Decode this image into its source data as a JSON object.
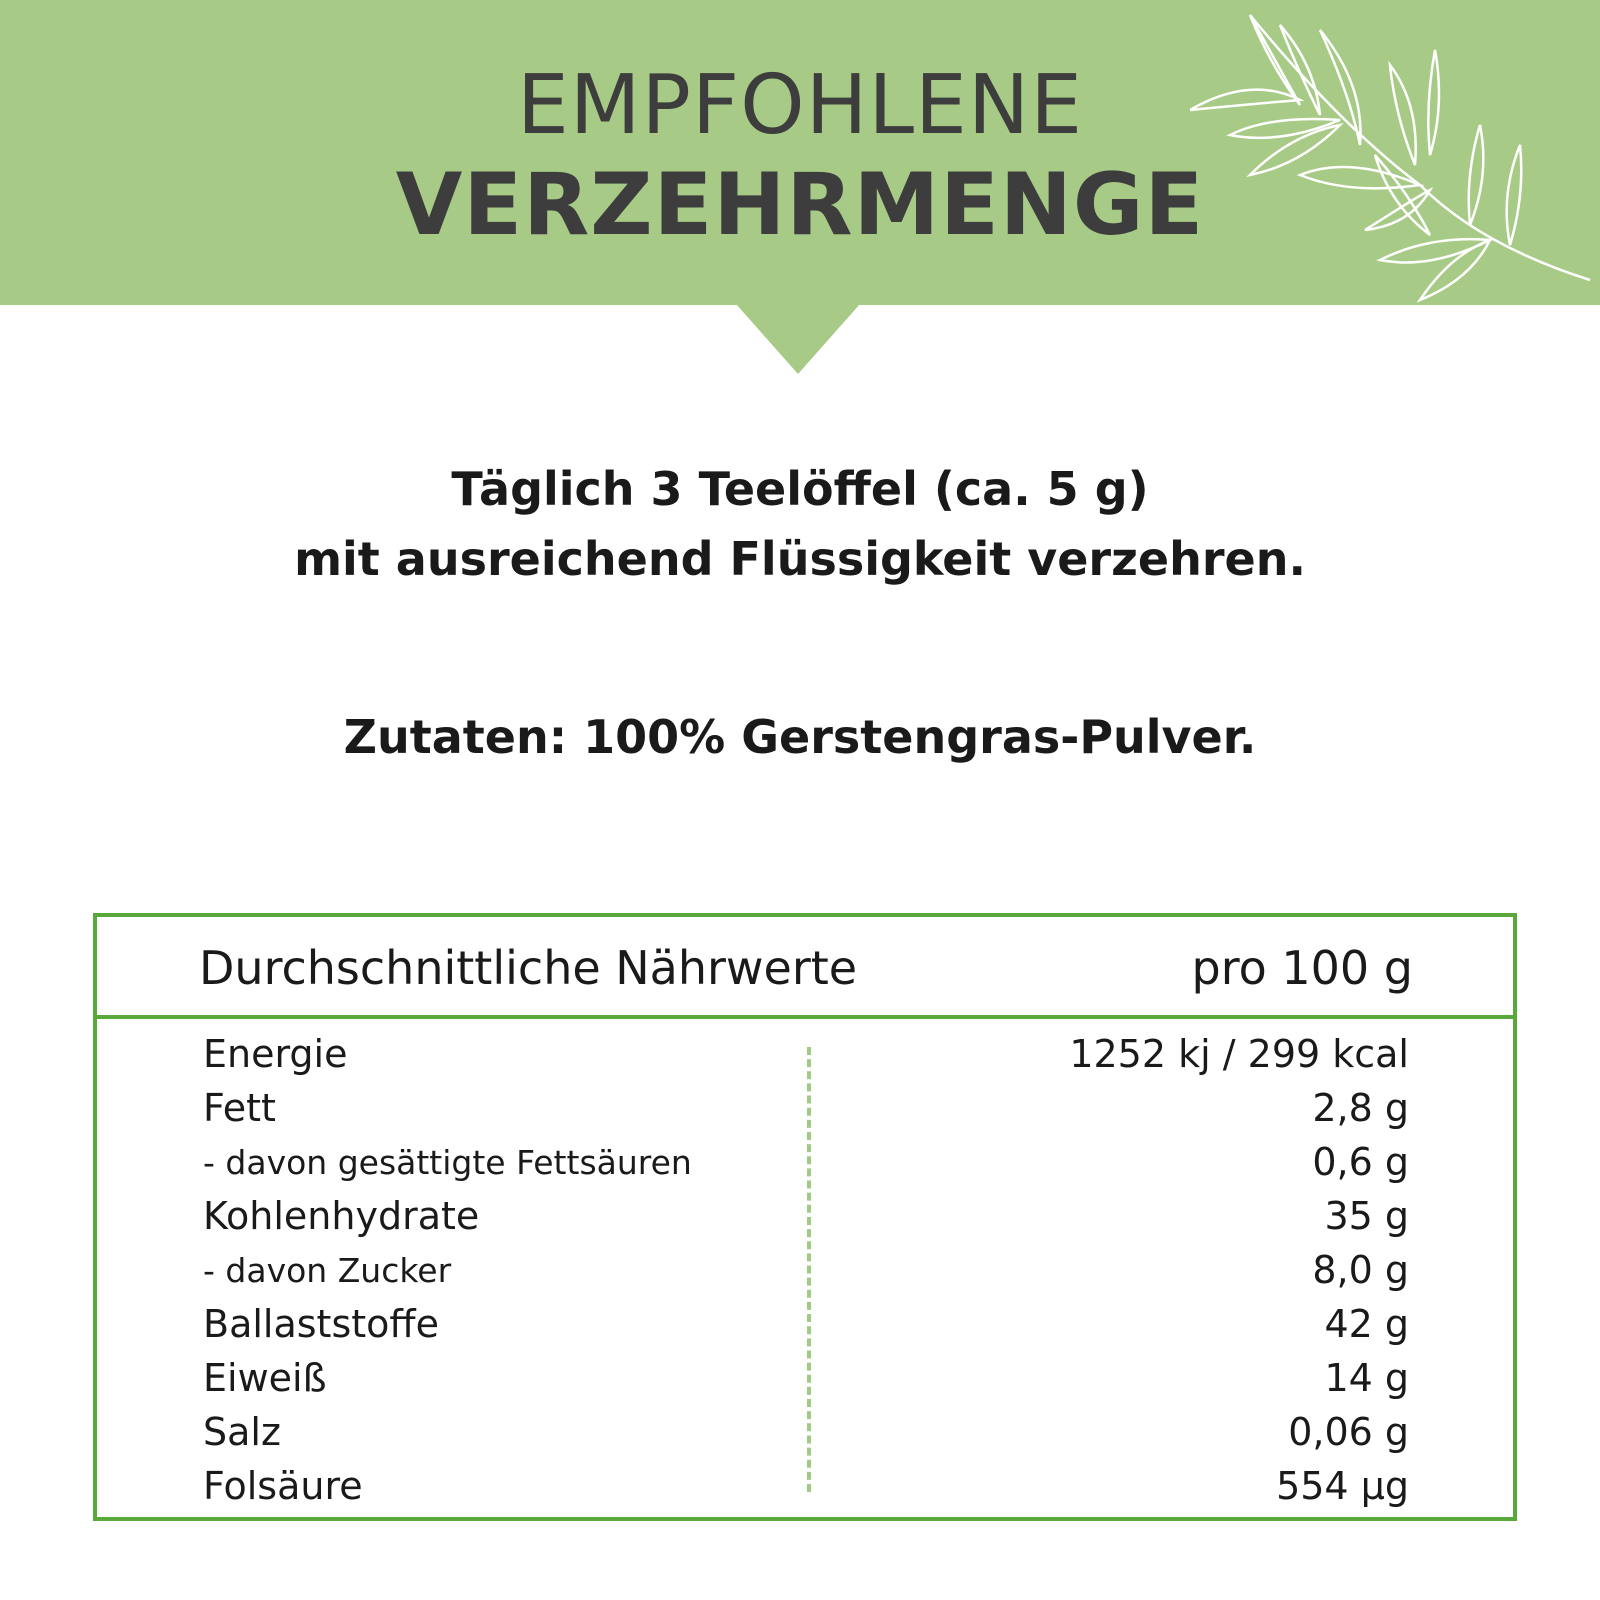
{
  "header": {
    "title_line1": "EMPFOHLENE",
    "title_line2": "VERZEHRMENGE",
    "decoration": "leaf-branch-icon",
    "background_color": "#a7cb86"
  },
  "instructions": {
    "line1": "Täglich 3 Teelöffel (ca. 5 g)",
    "line2": "mit ausreichend Flüssigkeit verzehren.",
    "ingredients": "Zutaten: 100% Gerstengras-Pulver."
  },
  "nutrition_table": {
    "header_label": "Durchschnittliche Nährwerte",
    "header_value": "pro 100 g",
    "border_color": "#5aa83b",
    "rows": [
      {
        "label": "Energie",
        "value": "1252 kj / 299 kcal"
      },
      {
        "label": "Fett",
        "value": "2,8 g"
      },
      {
        "label": "- davon gesättigte Fettsäuren",
        "value": "0,6 g"
      },
      {
        "label": "Kohlenhydrate",
        "value": "35 g"
      },
      {
        "label": "- davon Zucker",
        "value": "8,0 g"
      },
      {
        "label": "Ballaststoffe",
        "value": "42 g"
      },
      {
        "label": "Eiweiß",
        "value": "14 g"
      },
      {
        "label": "Salz",
        "value": "0,06 g"
      },
      {
        "label": "Folsäure",
        "value": "554 µg"
      }
    ]
  }
}
